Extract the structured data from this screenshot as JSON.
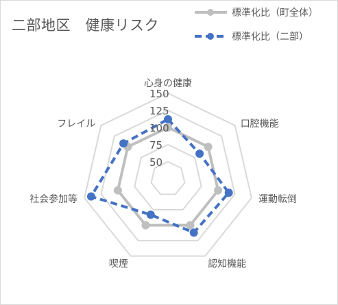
{
  "chart_data": {
    "type": "radar",
    "title": "二部地区　健康リスク",
    "categories": [
      "心身の健康",
      "口腔機能",
      "運動転倒",
      "認知機能",
      "喫煙",
      "社会参加等",
      "フレイル"
    ],
    "r_ticks": [
      50,
      75,
      100,
      125,
      150
    ],
    "r_range": [
      25,
      150
    ],
    "grid": true,
    "legend_position": "top-right",
    "series": [
      {
        "name": "標準化比（町全体）",
        "values": [
          100,
          100,
          100,
          100,
          100,
          100,
          100
        ],
        "color": "#bfbfbf",
        "line_style": "solid"
      },
      {
        "name": "標準化比（二部）",
        "values": [
          112,
          84,
          116,
          112,
          83,
          140,
          108
        ],
        "color": "#4472c4",
        "line_style": "dashed"
      }
    ]
  }
}
